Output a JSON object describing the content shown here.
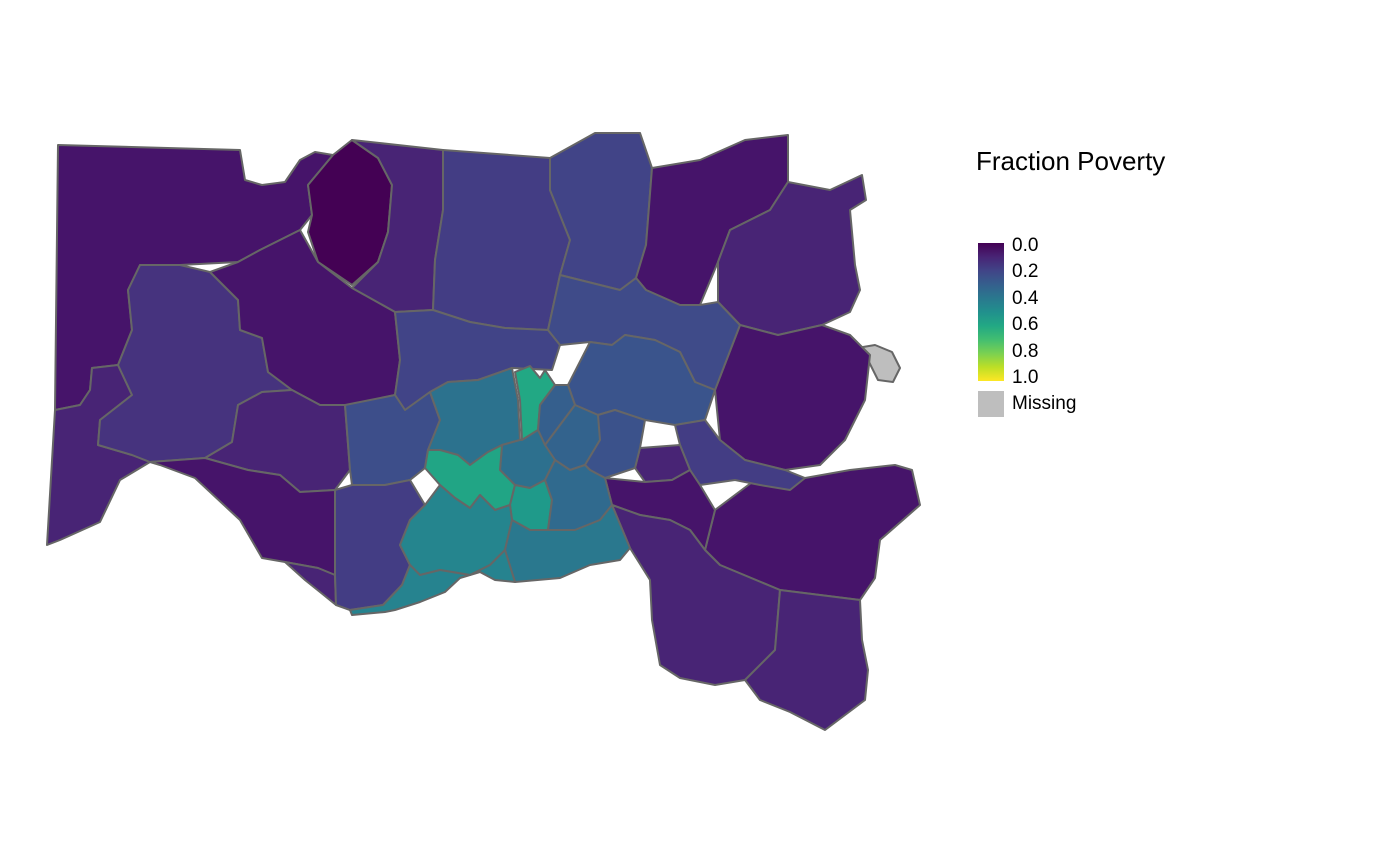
{
  "legend": {
    "title": "Fraction Poverty",
    "ticks": [
      "0.0",
      "0.2",
      "0.4",
      "0.6",
      "0.8",
      "1.0"
    ],
    "missing_label": "Missing",
    "missing_color": "#bebebe",
    "palette": "viridis",
    "scale_range": [
      0,
      1
    ]
  },
  "colors": {
    "border": "#666666",
    "viridis": [
      "#440154",
      "#482475",
      "#414487",
      "#355f8d",
      "#2a788e",
      "#21908d",
      "#22a884",
      "#42be71",
      "#7ad151",
      "#bddf26",
      "#fde725"
    ]
  },
  "map": {
    "grid": false,
    "axes": false,
    "legend_placement": "right"
  }
}
